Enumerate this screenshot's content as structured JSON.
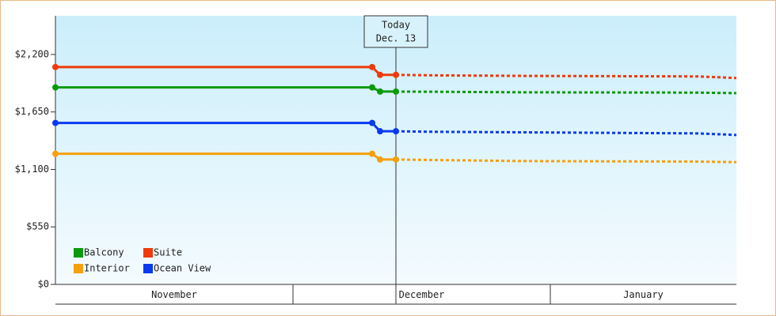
{
  "chart_data": {
    "type": "line",
    "x": [
      0,
      40,
      41,
      43,
      48,
      59,
      81,
      86
    ],
    "xlim": [
      0,
      86
    ],
    "xticks": [
      {
        "value": 0,
        "label": "November"
      },
      {
        "value": 30,
        "label": "December"
      },
      {
        "value": 62.5,
        "label": "January"
      }
    ],
    "ylim": [
      0,
      2570
    ],
    "yticks": [
      {
        "value": 0,
        "label": "$0"
      },
      {
        "value": 550,
        "label": "$550"
      },
      {
        "value": 1100,
        "label": "$1,100"
      },
      {
        "value": 1650,
        "label": "$1,650"
      },
      {
        "value": 2200,
        "label": "$2,200"
      }
    ],
    "today": {
      "x": 43,
      "label": "Today",
      "date": "Dec. 13"
    },
    "dashed_from": 3,
    "series": [
      {
        "name": "Balcony",
        "color": "#0c9a0c",
        "values": [
          1885,
          1885,
          1845,
          1845,
          1843,
          1838,
          1835,
          1830
        ]
      },
      {
        "name": "Suite",
        "color": "#ee3a0c",
        "values": [
          2080,
          2080,
          2005,
          2005,
          2000,
          1995,
          1990,
          1975
        ]
      },
      {
        "name": "Interior",
        "color": "#f5a00f",
        "values": [
          1250,
          1250,
          1195,
          1195,
          1190,
          1180,
          1175,
          1170
        ]
      },
      {
        "name": "Ocean View",
        "color": "#0a3aee",
        "values": [
          1545,
          1545,
          1465,
          1465,
          1460,
          1455,
          1445,
          1430
        ]
      }
    ]
  }
}
